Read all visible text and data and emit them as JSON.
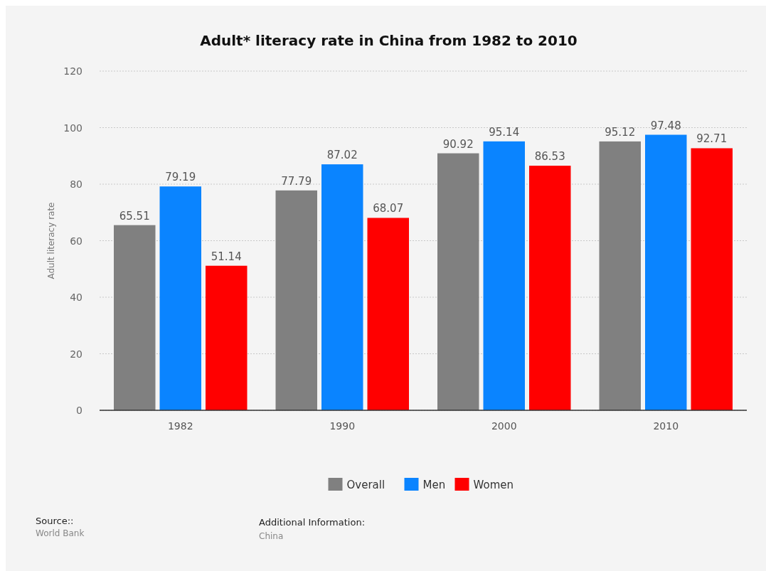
{
  "chart_data": {
    "type": "bar",
    "title": "Adult* literacy rate in China from 1982 to 2010",
    "ylabel": "Adult literacy rate",
    "categories": [
      "1982",
      "1990",
      "2000",
      "2010"
    ],
    "series": [
      {
        "name": "Overall",
        "color": "#808080",
        "values": [
          65.51,
          77.79,
          90.92,
          95.12
        ]
      },
      {
        "name": "Men",
        "color": "#0a84ff",
        "values": [
          79.19,
          87.02,
          95.14,
          97.48
        ]
      },
      {
        "name": "Women",
        "color": "#ff0000",
        "values": [
          51.14,
          68.07,
          86.53,
          92.71
        ]
      }
    ],
    "ylim": [
      0,
      120
    ],
    "yticks": [
      0,
      20,
      40,
      60,
      80,
      100,
      120
    ],
    "grid": "y",
    "legend": "bottom",
    "data_labels": true,
    "annotations": [
      "Source::",
      "World Bank",
      "Additional Information:",
      "China"
    ]
  }
}
